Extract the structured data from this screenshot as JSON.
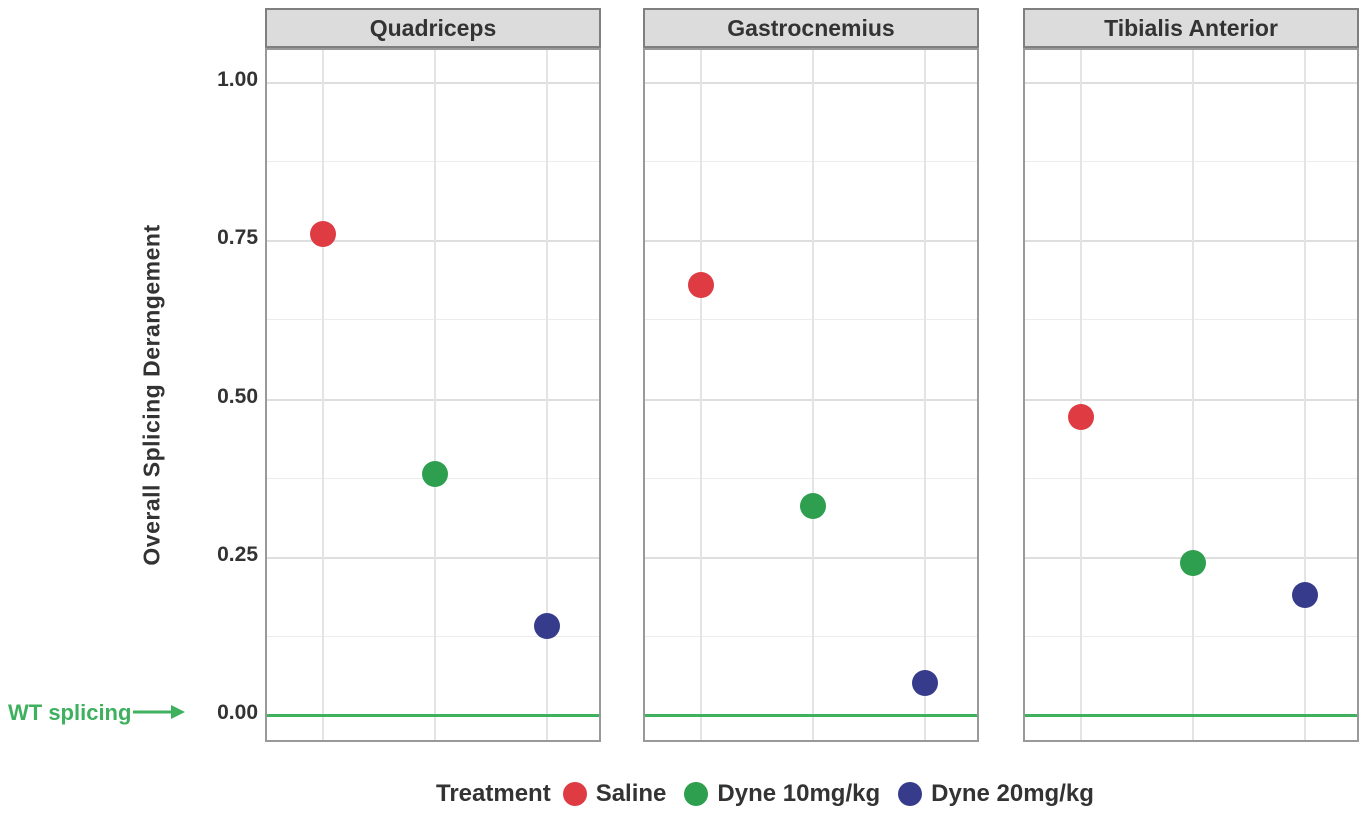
{
  "chart_data": {
    "type": "scatter",
    "title": "",
    "facets": [
      "Quadriceps",
      "Gastrocnemius",
      "Tibialis Anterior"
    ],
    "ylabel": "Overall Splicing Derangement",
    "yticks": [
      "1.00",
      "0.75",
      "0.50",
      "0.25",
      "0.00"
    ],
    "ytick_values": [
      1.0,
      0.75,
      0.5,
      0.25,
      0.0
    ],
    "ylim": [
      -0.05,
      1.05
    ],
    "grid": "on",
    "legend_position": "bottom",
    "series": [
      {
        "name": "Saline",
        "color": "#de3b43",
        "values": [
          0.76,
          0.68,
          0.47
        ]
      },
      {
        "name": "Dyne 10mg/kg",
        "color": "#2e9e4f",
        "values": [
          0.38,
          0.33,
          0.24
        ]
      },
      {
        "name": "Dyne 20mg/kg",
        "color": "#363b8c",
        "values": [
          0.14,
          0.05,
          0.19
        ]
      }
    ],
    "reference_line": {
      "y": 0.0,
      "label": "WT splicing",
      "color": "#3fb05e"
    }
  },
  "legend": {
    "title": "Treatment"
  },
  "annotation": {
    "wt_label": "WT splicing"
  },
  "colors": {
    "grid_major": "#dedede",
    "grid_minor": "#ececec",
    "panel_border": "#999999",
    "strip_bg": "#dcdcdc",
    "wt_green": "#3fb05e"
  }
}
